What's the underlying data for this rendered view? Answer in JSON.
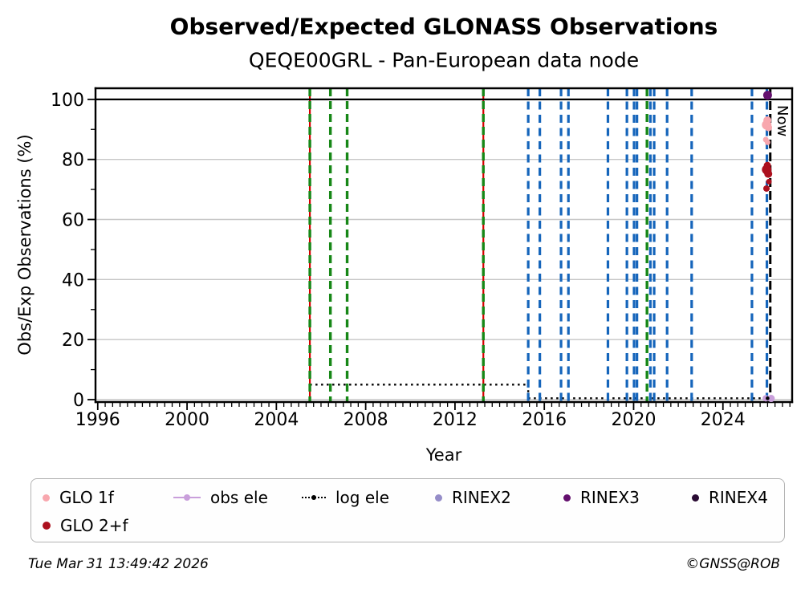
{
  "footer": {
    "timestamp": "Tue Mar 31 13:49:42 2026",
    "credit": "©GNSS@ROB"
  },
  "chart_data": {
    "type": "scatter",
    "title": "Observed/Expected GLONASS Observations",
    "subtitle": "QEQE00GRL - Pan-European data node",
    "xlabel": "Year",
    "ylabel": "Obs/Exp Observations (%)",
    "xlim": [
      1995.9,
      2027.1
    ],
    "ylim": [
      -0.8,
      103.7
    ],
    "x_major_ticks": [
      1996,
      2000,
      2004,
      2008,
      2012,
      2016,
      2020,
      2024
    ],
    "x_minor_interval": 0.3333,
    "y_major_ticks": [
      0,
      20,
      40,
      60,
      80,
      100
    ],
    "y_minor_interval": 10,
    "grid": {
      "axis": "y",
      "color": "#c6c6c6"
    },
    "reference_line": {
      "y": 100,
      "color": "#000000"
    },
    "now_line": {
      "year": 2026.12,
      "label": "Now",
      "color": "#000000",
      "style": "dashed"
    },
    "event_lines": {
      "red_green": {
        "years": [
          2005.5,
          2013.27
        ],
        "red": "#d40000",
        "green": "#178717"
      },
      "green": {
        "years": [
          2006.42,
          2007.17,
          2020.6
        ],
        "color": "#178717"
      },
      "blue": {
        "years": [
          2015.28,
          2015.8,
          2016.75,
          2017.08,
          2018.85,
          2019.7,
          2020.02,
          2020.15,
          2020.75,
          2020.92,
          2021.5,
          2022.6,
          2025.3,
          2025.97
        ],
        "color": "#1565bb"
      }
    },
    "log_ele": {
      "color": "#000000",
      "style": "dotted",
      "path_xy": [
        [
          2005.5,
          5
        ],
        [
          2015.28,
          5
        ],
        [
          2015.28,
          0.45
        ],
        [
          2026.05,
          0.45
        ]
      ],
      "marker_xy": [
        2026.0,
        0.45
      ]
    },
    "series": [
      {
        "name": "GLO 1f",
        "color": "#f8a7ae",
        "points": [
          [
            2025.99,
            93.0,
            5
          ],
          [
            2025.96,
            91.5,
            6
          ],
          [
            2026.04,
            90.6,
            4.5
          ],
          [
            2025.92,
            86.6,
            3.5
          ],
          [
            2026.0,
            85.7,
            3.5
          ]
        ]
      },
      {
        "name": "GLO 2+f",
        "color": "#ac101e",
        "points": [
          [
            2025.99,
            78.0,
            4.5
          ],
          [
            2025.96,
            76.6,
            6
          ],
          [
            2026.03,
            75.2,
            5
          ],
          [
            2026.06,
            72.6,
            3.5
          ],
          [
            2025.95,
            70.3,
            4
          ]
        ]
      },
      {
        "name": "obs ele",
        "color": "#c99fdb",
        "points": [
          [
            2025.92,
            0.45,
            4
          ],
          [
            2026.16,
            0.4,
            4.5
          ]
        ]
      },
      {
        "name": "RINEX2",
        "color": "#958dc8",
        "points": []
      },
      {
        "name": "RINEX3",
        "color": "#64106e",
        "points": [
          [
            2026.0,
            101.4,
            5.5
          ]
        ]
      },
      {
        "name": "RINEX4",
        "color": "#2a0b33",
        "points": []
      }
    ],
    "legend": [
      {
        "label": "GLO 1f",
        "color": "#f8a7ae",
        "marker": "dot"
      },
      {
        "label": "obs ele",
        "color": "#c99fdb",
        "marker": "line-dot"
      },
      {
        "label": "log ele",
        "color": "#000000",
        "marker": "dotted-line-dot"
      },
      {
        "label": "RINEX2",
        "color": "#958dc8",
        "marker": "dot"
      },
      {
        "label": "RINEX3",
        "color": "#64106e",
        "marker": "dot"
      },
      {
        "label": "RINEX4",
        "color": "#2a0b33",
        "marker": "dot"
      },
      {
        "label": "GLO 2+f",
        "color": "#ac101e",
        "marker": "dot"
      }
    ]
  }
}
